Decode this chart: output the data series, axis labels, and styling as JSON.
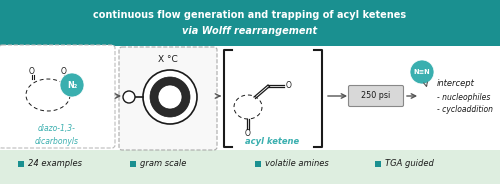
{
  "bg_color": "#ffffff",
  "header_bg": "#1a9090",
  "header_text_line1": "continuous flow generation and trapping of acyl ketenes",
  "header_text_line2": "via Wolff rearrangement",
  "header_text_color": "#ffffff",
  "footer_bg": "#deeee0",
  "footer_items": [
    {
      "bullet_color": "#1a9090",
      "text": "24 examples"
    },
    {
      "bullet_color": "#1a9090",
      "text": "gram scale"
    },
    {
      "bullet_color": "#1a9090",
      "text": "volatile amines"
    },
    {
      "bullet_color": "#1a9090",
      "text": "TGA guided"
    }
  ],
  "teal_color": "#3aafaf",
  "dark_teal": "#1a9090",
  "black": "#1a1a1a",
  "gray": "#555555",
  "light_gray": "#aaaaaa",
  "med_gray": "#888888"
}
